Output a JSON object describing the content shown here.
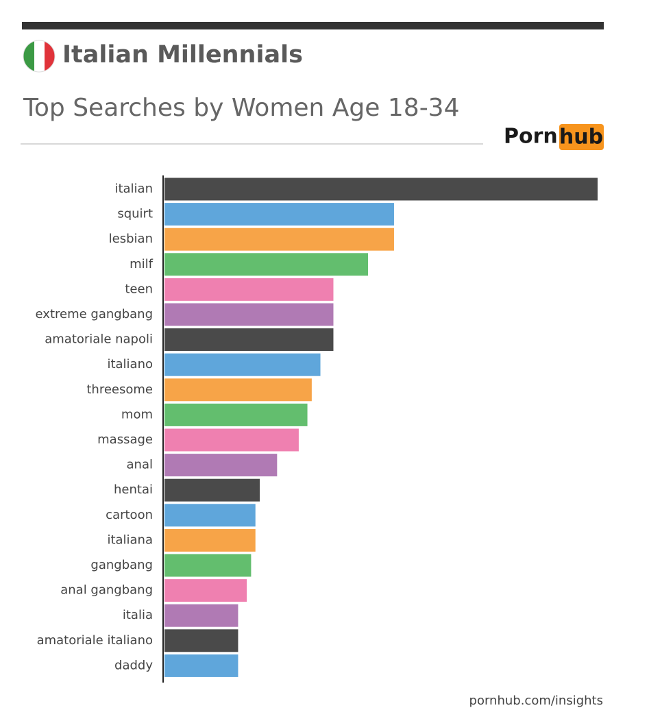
{
  "chart_data": {
    "type": "bar",
    "orientation": "horizontal",
    "title": "Italian Millennials",
    "subtitle": "Top Searches by Women Age 18-34",
    "logo": [
      "Porn",
      "hub"
    ],
    "source": "pornhub.com/insights",
    "categories": [
      "italian",
      "squirt",
      "lesbian",
      "milf",
      "teen",
      "extreme gangbang",
      "amatoriale napoli",
      "italiano",
      "threesome",
      "mom",
      "massage",
      "anal",
      "hentai",
      "cartoon",
      "italiana",
      "gangbang",
      "anal gangbang",
      "italia",
      "amatoriale italiano",
      "daddy"
    ],
    "values": [
      100,
      53,
      53,
      47,
      39,
      39,
      39,
      36,
      34,
      33,
      31,
      26,
      22,
      21,
      21,
      20,
      19,
      17,
      17,
      17
    ],
    "palette": [
      "#4a4a4a",
      "#5fa6db",
      "#f7a448",
      "#63be6e",
      "#ef80b0",
      "#b07ab4"
    ]
  }
}
